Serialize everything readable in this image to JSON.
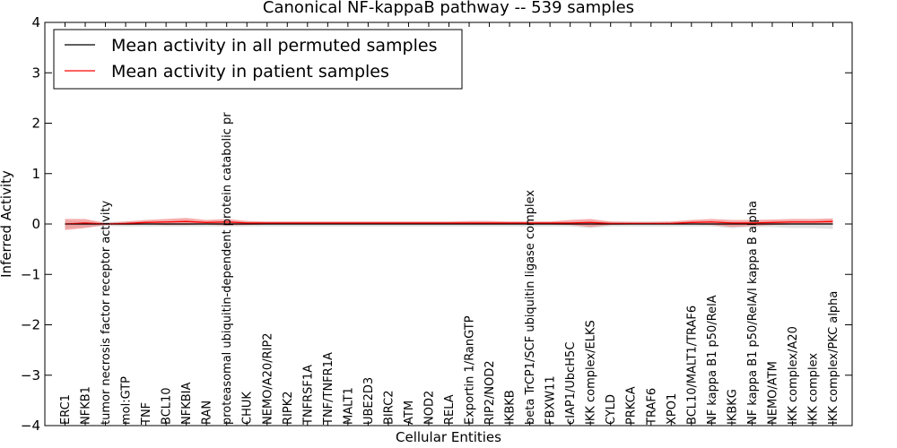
{
  "chart_data": {
    "type": "line",
    "title": "Canonical NF-kappaB pathway -- 539 samples",
    "xlabel": "Cellular Entities",
    "ylabel": "Inferred Activity",
    "ylim": [
      -4,
      4
    ],
    "yticks": [
      {
        "value": 4,
        "label": "4"
      },
      {
        "value": 3,
        "label": "3"
      },
      {
        "value": 2,
        "label": "2"
      },
      {
        "value": 1,
        "label": "1"
      },
      {
        "value": 0,
        "label": "0"
      },
      {
        "value": -1,
        "label": "−1"
      },
      {
        "value": -2,
        "label": "−2"
      },
      {
        "value": -3,
        "label": "−3"
      },
      {
        "value": -4,
        "label": "−4"
      }
    ],
    "legend_position": "top-left",
    "categories": [
      "ERC1",
      "NFKB1",
      "tumor necrosis factor receptor activity",
      "mol:GTP",
      "TNF",
      "BCL10",
      "NFKBIA",
      "RAN",
      "proteasomal ubiquitin-dependent protein catabolic pr",
      "CHUK",
      "NEMO/A20/RIP2",
      "RIPK2",
      "TNFRSF1A",
      "TNF/TNFR1A",
      "MALT1",
      "UBE2D3",
      "BIRC2",
      "ATM",
      "NOD2",
      "RELA",
      "Exportin 1/RanGTP",
      "RIP2/NOD2",
      "IKBKB",
      "beta TrCP1/SCF ubiquitin ligase complex",
      "FBXW11",
      "cIAP1/UbcH5C",
      "IKK complex/ELKS",
      "CYLD",
      "PRKCA",
      "TRAF6",
      "XPO1",
      "BCL10/MALT1/TRAF6",
      "NF kappa B1 p50/RelA",
      "IKBKG",
      "NF kappa B1 p50/RelA/I kappa B alpha",
      "NEMO/ATM",
      "IKK complex/A20",
      "IKK complex",
      "IKK complex/PKC alpha"
    ],
    "series": [
      {
        "name": "Mean activity in all permuted samples",
        "color": "#000000",
        "values": [
          0.0,
          0.0,
          0.0,
          0.0,
          0.0,
          0.0,
          0.0,
          0.0,
          0.0,
          0.0,
          0.0,
          0.0,
          0.0,
          0.0,
          0.0,
          0.0,
          0.0,
          0.0,
          0.0,
          0.0,
          0.0,
          0.0,
          0.0,
          0.0,
          0.0,
          0.0,
          0.0,
          0.0,
          0.0,
          0.0,
          0.0,
          0.0,
          0.0,
          0.0,
          0.0,
          0.0,
          0.0,
          0.0,
          0.0
        ],
        "band_color": "#bdbdbd",
        "band_lower": [
          -0.08,
          -0.06,
          -0.04,
          -0.05,
          -0.05,
          -0.05,
          -0.05,
          -0.05,
          -0.05,
          -0.05,
          -0.05,
          -0.05,
          -0.05,
          -0.05,
          -0.05,
          -0.05,
          -0.05,
          -0.05,
          -0.05,
          -0.05,
          -0.05,
          -0.05,
          -0.05,
          -0.05,
          -0.05,
          -0.05,
          -0.08,
          -0.05,
          -0.05,
          -0.05,
          -0.05,
          -0.05,
          -0.05,
          -0.08,
          -0.06,
          -0.06,
          -0.08,
          -0.08,
          -0.1
        ],
        "band_upper": [
          0.06,
          0.05,
          0.04,
          0.05,
          0.05,
          0.05,
          0.05,
          0.05,
          0.05,
          0.05,
          0.05,
          0.05,
          0.05,
          0.05,
          0.05,
          0.05,
          0.05,
          0.05,
          0.05,
          0.05,
          0.05,
          0.05,
          0.05,
          0.05,
          0.05,
          0.05,
          0.05,
          0.05,
          0.05,
          0.05,
          0.05,
          0.05,
          0.05,
          0.05,
          0.05,
          0.05,
          0.06,
          0.06,
          0.06
        ]
      },
      {
        "name": "Mean activity in patient samples",
        "color": "#ff0000",
        "values": [
          0.0,
          0.02,
          0.0,
          0.01,
          0.03,
          0.04,
          0.05,
          0.03,
          0.04,
          0.02,
          0.02,
          0.02,
          0.02,
          0.02,
          0.02,
          0.02,
          0.02,
          0.02,
          0.02,
          0.02,
          0.02,
          0.02,
          0.02,
          0.02,
          0.02,
          0.02,
          0.03,
          0.01,
          0.01,
          0.01,
          0.01,
          0.03,
          0.04,
          0.02,
          0.02,
          0.03,
          0.04,
          0.04,
          0.05
        ],
        "band_color": "#f08080",
        "band_lower": [
          -0.12,
          -0.08,
          -0.02,
          -0.02,
          -0.01,
          -0.02,
          -0.02,
          -0.01,
          -0.03,
          -0.02,
          -0.01,
          -0.01,
          -0.01,
          -0.01,
          -0.01,
          -0.01,
          -0.01,
          -0.01,
          -0.01,
          -0.01,
          -0.01,
          -0.01,
          -0.01,
          -0.01,
          -0.01,
          -0.02,
          -0.06,
          -0.02,
          -0.01,
          -0.01,
          -0.01,
          -0.01,
          -0.02,
          -0.06,
          -0.04,
          -0.02,
          -0.01,
          -0.01,
          -0.01
        ],
        "band_upper": [
          0.1,
          0.1,
          0.02,
          0.05,
          0.08,
          0.1,
          0.12,
          0.08,
          0.1,
          0.06,
          0.05,
          0.05,
          0.05,
          0.05,
          0.05,
          0.05,
          0.05,
          0.05,
          0.05,
          0.05,
          0.06,
          0.06,
          0.05,
          0.05,
          0.05,
          0.08,
          0.1,
          0.05,
          0.04,
          0.04,
          0.05,
          0.08,
          0.1,
          0.08,
          0.08,
          0.09,
          0.1,
          0.1,
          0.11
        ]
      }
    ]
  }
}
